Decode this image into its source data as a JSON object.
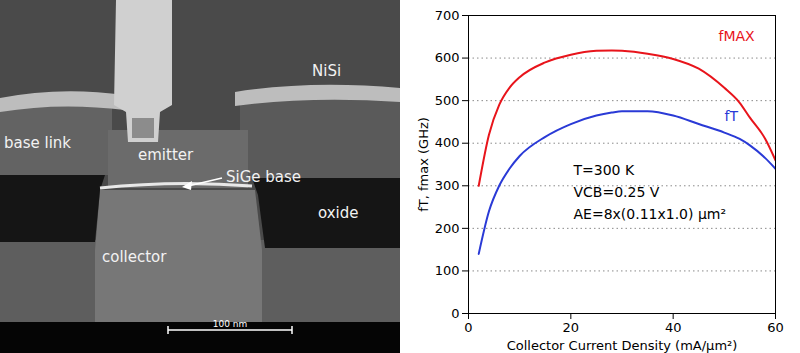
{
  "chart_data": {
    "type": "line",
    "x_label": "Collector Current Density (mA/µm²)",
    "y_label": "fT, fmax (GHz)",
    "x": [
      2,
      4,
      6,
      8,
      10,
      15,
      20,
      25,
      28,
      30,
      35,
      40,
      45,
      50,
      53,
      55,
      58,
      60
    ],
    "series": [
      {
        "name": "fMAX",
        "color": "#e8141b",
        "values": [
          300,
          420,
          490,
          530,
          555,
          590,
          608,
          617,
          618,
          617,
          610,
          598,
          575,
          530,
          495,
          460,
          410,
          360
        ]
      },
      {
        "name": "fT",
        "color": "#2a3ad6",
        "values": [
          140,
          240,
          300,
          340,
          370,
          415,
          445,
          465,
          472,
          475,
          475,
          465,
          445,
          425,
          410,
          395,
          365,
          340
        ]
      }
    ],
    "xlim": [
      0,
      60
    ],
    "xticks": [
      0,
      20,
      40,
      60
    ],
    "ylim": [
      0,
      700
    ],
    "yticks": [
      0,
      100,
      200,
      300,
      400,
      500,
      600,
      700
    ],
    "grid": true,
    "annotations": [
      "T=300 K",
      "VCB=0.25 V",
      "AE=8x(0.11x1.0) µm²"
    ]
  },
  "image": {
    "labels": [
      "NiSi",
      "base link",
      "emitter",
      "SiGe base",
      "oxide",
      "collector"
    ],
    "scale_bar": "100 nm"
  }
}
